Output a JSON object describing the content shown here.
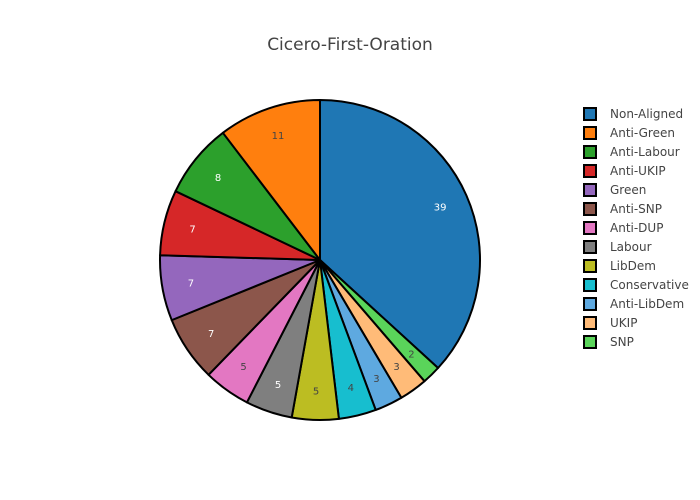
{
  "chart_data": {
    "type": "pie",
    "title": "Cicero-First-Oration",
    "legend_position": "right",
    "slices": [
      {
        "label": "Non-Aligned",
        "value": 39,
        "color": "#1f77b4",
        "text_color": "#ffffff"
      },
      {
        "label": "SNP",
        "value": 2,
        "color": "#5ad45a",
        "text_color": "#444444"
      },
      {
        "label": "UKIP",
        "value": 3,
        "color": "#ffbb78",
        "text_color": "#444444"
      },
      {
        "label": "Anti-LibDem",
        "value": 3,
        "color": "#5ea9e0",
        "text_color": "#444444"
      },
      {
        "label": "Conservative",
        "value": 4,
        "color": "#17becf",
        "text_color": "#444444"
      },
      {
        "label": "LibDem",
        "value": 5,
        "color": "#bcbd22",
        "text_color": "#444444"
      },
      {
        "label": "Labour",
        "value": 5,
        "color": "#7f7f7f",
        "text_color": "#ffffff"
      },
      {
        "label": "Anti-DUP",
        "value": 5,
        "color": "#e377c2",
        "text_color": "#444444"
      },
      {
        "label": "Anti-SNP",
        "value": 7,
        "color": "#8c564b",
        "text_color": "#ffffff"
      },
      {
        "label": "Green",
        "value": 7,
        "color": "#9467bd",
        "text_color": "#ffffff"
      },
      {
        "label": "Anti-UKIP",
        "value": 7,
        "color": "#d62728",
        "text_color": "#ffffff"
      },
      {
        "label": "Anti-Labour",
        "value": 8,
        "color": "#2ca02c",
        "text_color": "#ffffff"
      },
      {
        "label": "Anti-Green",
        "value": 11,
        "color": "#ff7f0e",
        "text_color": "#444444"
      }
    ],
    "legend_order": [
      "Non-Aligned",
      "Anti-Green",
      "Anti-Labour",
      "Anti-UKIP",
      "Green",
      "Anti-SNP",
      "Anti-DUP",
      "Labour",
      "LibDem",
      "Conservative",
      "Anti-LibDem",
      "UKIP",
      "SNP"
    ]
  }
}
